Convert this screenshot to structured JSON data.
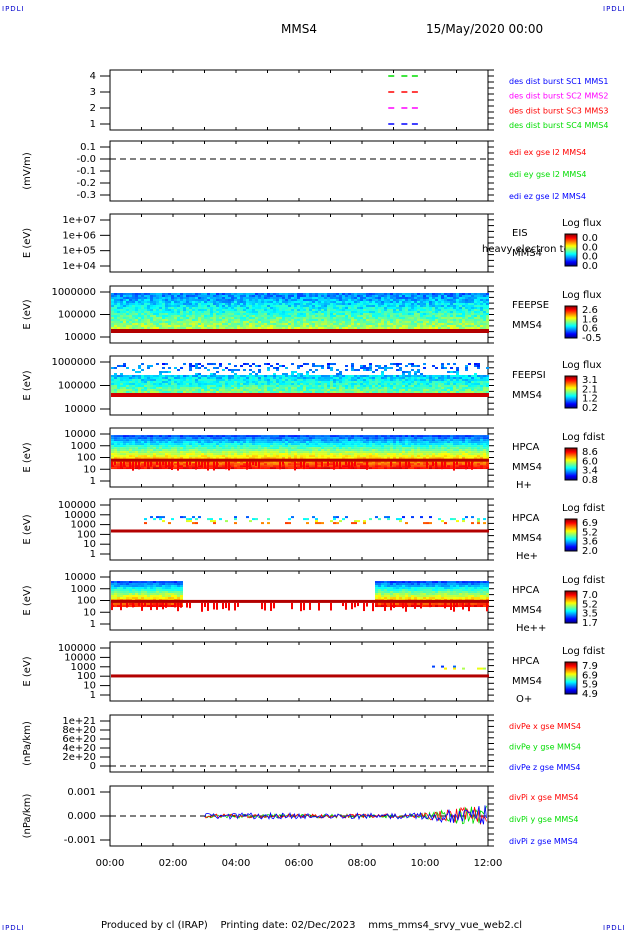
{
  "corner_label": "IPDLI",
  "header": {
    "spacecraft": "MMS4",
    "date": "15/May/2020 00:00"
  },
  "footer": {
    "text": "Produced by cl (IRAP)    Printing date: 02/Dec/2023    mms_mms4_srvy_vue_web2.cl"
  },
  "colors": {
    "mms1": "#0000ff",
    "mms2": "#ff00ff",
    "mms3": "#ff0000",
    "mms4": "#00dd00",
    "x": "#ff0000",
    "y": "#00dd00",
    "z": "#0000ff"
  },
  "chart_data": [
    {
      "type": "scatter",
      "ylabel": "",
      "yticks": [
        "4",
        "3",
        "2",
        "1"
      ],
      "xlim": [
        "00:00",
        "12:00"
      ],
      "xticks": [
        "00:00",
        "02:00",
        "04:00",
        "06:00",
        "08:00",
        "10:00",
        "12:00"
      ],
      "series": [
        {
          "name": "des dist burst SC1 MMS1",
          "y": 1,
          "x": [
            "08:50",
            "09:15",
            "09:35"
          ]
        },
        {
          "name": "des dist burst SC2 MMS2",
          "y": 2,
          "x": [
            "08:50",
            "09:15",
            "09:35"
          ]
        },
        {
          "name": "des dist burst SC3 MMS3",
          "y": 3,
          "x": [
            "08:50",
            "09:15",
            "09:35"
          ]
        },
        {
          "name": "des dist burst SC4 MMS4",
          "y": 4,
          "x": [
            "08:50",
            "09:15",
            "09:35"
          ]
        }
      ]
    },
    {
      "type": "line",
      "ylabel": "(mV/m)",
      "yticks": [
        "0.1",
        "-0.0",
        "-0.1",
        "-0.2",
        "-0.3"
      ],
      "ylim": [
        -0.35,
        0.15
      ],
      "series": [
        {
          "name": "edi ex gse l2 MMS4"
        },
        {
          "name": "edi ey gse l2 MMS4"
        },
        {
          "name": "edi ez gse l2 MMS4"
        }
      ],
      "reference_line": 0
    },
    {
      "type": "heatmap",
      "ylabel": "E (eV)",
      "yticks": [
        "1e+07",
        "1e+06",
        "1e+05",
        "1e+04"
      ],
      "ylim": [
        10000,
        10000000
      ],
      "instrument": "EIS",
      "spacecraft": "MMS4",
      "note": "heavy electron to",
      "colorbar": {
        "title": "Log flux",
        "ticks": [
          "0.0",
          "0.0",
          "0.0",
          "0.0"
        ]
      }
    },
    {
      "type": "heatmap",
      "ylabel": "E (eV)",
      "yticks": [
        "1000000",
        "100000",
        "10000"
      ],
      "ylim": [
        10000,
        1000000
      ],
      "instrument": "FEEPSE",
      "spacecraft": "MMS4",
      "colorbar": {
        "title": "Log flux",
        "ticks": [
          "2.6",
          "1.6",
          "0.6",
          "-0.5"
        ]
      }
    },
    {
      "type": "heatmap",
      "ylabel": "E (eV)",
      "yticks": [
        "1000000",
        "100000",
        "10000"
      ],
      "ylim": [
        10000,
        1000000
      ],
      "instrument": "FEEPSI",
      "spacecraft": "MMS4",
      "colorbar": {
        "title": "Log flux",
        "ticks": [
          "3.1",
          "2.1",
          "1.2",
          "0.2"
        ]
      }
    },
    {
      "type": "heatmap",
      "ylabel": "E (eV)",
      "yticks": [
        "10000",
        "1000",
        "100",
        "10",
        "1"
      ],
      "ylim": [
        1,
        40000
      ],
      "instrument": "HPCA",
      "spacecraft": "MMS4",
      "species": "H+",
      "colorbar": {
        "title": "Log fdist",
        "ticks": [
          "8.6",
          "6.0",
          "3.4",
          "0.8"
        ]
      }
    },
    {
      "type": "heatmap",
      "ylabel": "E (eV)",
      "yticks": [
        "100000",
        "10000",
        "1000",
        "100",
        "10",
        "1"
      ],
      "ylim": [
        1,
        100000
      ],
      "instrument": "HPCA",
      "spacecraft": "MMS4",
      "species": "He+",
      "colorbar": {
        "title": "Log fdist",
        "ticks": [
          "6.9",
          "5.2",
          "3.6",
          "2.0"
        ]
      }
    },
    {
      "type": "heatmap",
      "ylabel": "E (eV)",
      "yticks": [
        "10000",
        "1000",
        "100",
        "10",
        "1"
      ],
      "ylim": [
        1,
        40000
      ],
      "instrument": "HPCA",
      "spacecraft": "MMS4",
      "species": "He++",
      "colorbar": {
        "title": "Log fdist",
        "ticks": [
          "7.0",
          "5.2",
          "3.5",
          "1.7"
        ]
      }
    },
    {
      "type": "heatmap",
      "ylabel": "E (eV)",
      "yticks": [
        "100000",
        "10000",
        "1000",
        "100",
        "10",
        "1"
      ],
      "ylim": [
        1,
        100000
      ],
      "instrument": "HPCA",
      "spacecraft": "MMS4",
      "species": "O+",
      "colorbar": {
        "title": "Log fdist",
        "ticks": [
          "7.9",
          "6.9",
          "5.9",
          "4.9"
        ]
      }
    },
    {
      "type": "line",
      "ylabel": "(nPa/km)",
      "yticks": [
        "1e+21",
        "8e+20",
        "6e+20",
        "4e+20",
        "2e+20",
        "0"
      ],
      "ylim": [
        0,
        1e+21
      ],
      "series": [
        {
          "name": "divPe x gse MMS4"
        },
        {
          "name": "divPe y gse MMS4"
        },
        {
          "name": "divPe z gse MMS4"
        }
      ]
    },
    {
      "type": "line",
      "ylabel": "(nPa/km)",
      "yticks": [
        "0.001",
        "0.000",
        "-0.001"
      ],
      "ylim": [
        -0.0015,
        0.0015
      ],
      "series": [
        {
          "name": "divPi x gse MMS4"
        },
        {
          "name": "divPi y gse MMS4"
        },
        {
          "name": "divPi z gse MMS4"
        }
      ],
      "reference_line": 0
    }
  ]
}
